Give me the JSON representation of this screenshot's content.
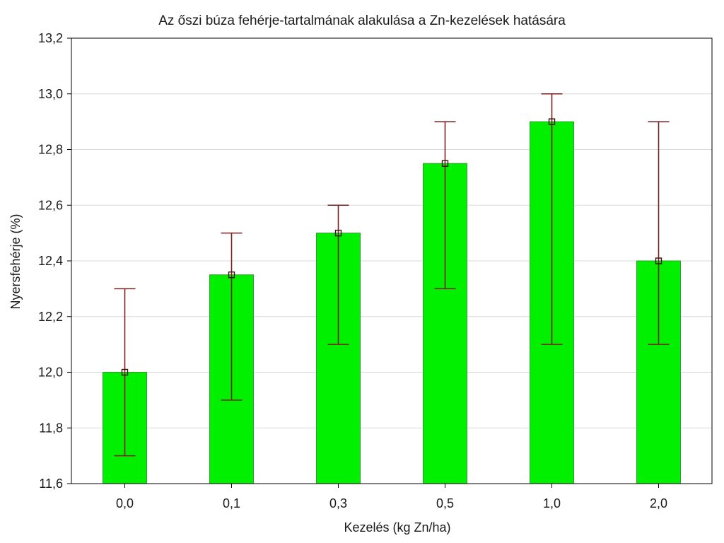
{
  "chart_data": {
    "type": "bar",
    "title": "Az őszi búza fehérje-tartalmának alakulása a Zn-kezelések hatására",
    "xlabel": "Kezelés (kg Zn/ha)",
    "ylabel": "Nyersfehérje (%)",
    "categories": [
      "0,0",
      "0,1",
      "0,3",
      "0,5",
      "1,0",
      "2,0"
    ],
    "values": [
      12.0,
      12.35,
      12.5,
      12.75,
      12.9,
      12.4
    ],
    "error_low": [
      11.7,
      11.9,
      12.1,
      12.3,
      12.1,
      12.1
    ],
    "error_high": [
      12.3,
      12.5,
      12.6,
      12.9,
      13.0,
      12.9
    ],
    "ylim": [
      11.6,
      13.2
    ],
    "yticks": [
      11.6,
      11.8,
      12.0,
      12.2,
      12.4,
      12.6,
      12.8,
      13.0,
      13.2
    ],
    "ytick_labels": [
      "11,6",
      "11,8",
      "12,0",
      "12,2",
      "12,4",
      "12,6",
      "12,8",
      "13,0",
      "13,2"
    ],
    "grid": true,
    "legend": "none",
    "colors": {
      "bar_fill": "#00f000",
      "bar_stroke": "#2f9e2f",
      "error_bar": "#7a1f1f",
      "marker": "#3a1010",
      "grid": "#d9d9d9",
      "axis": "#000000"
    }
  }
}
